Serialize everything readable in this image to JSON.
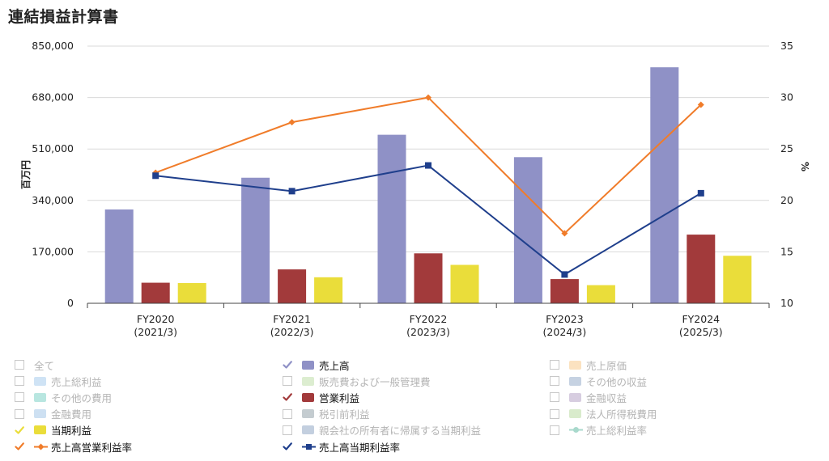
{
  "title": "連結損益計算書",
  "chart_data": {
    "type": "bar",
    "categories": [
      "FY2020\n(2021/3)",
      "FY2021\n(2022/3)",
      "FY2022\n(2023/3)",
      "FY2023\n(2024/3)",
      "FY2024\n(2025/3)"
    ],
    "category_lines": [
      [
        "FY2020",
        "(2021/3)"
      ],
      [
        "FY2021",
        "(2022/3)"
      ],
      [
        "FY2022",
        "(2023/3)"
      ],
      [
        "FY2023",
        "(2024/3)"
      ],
      [
        "FY2024",
        "(2025/3)"
      ]
    ],
    "ylabel": "百万円",
    "y2label": "%",
    "ylim": [
      0,
      850000
    ],
    "y2lim": [
      10,
      35
    ],
    "yticks": [
      0,
      170000,
      340000,
      510000,
      680000,
      850000
    ],
    "ytick_labels": [
      "0",
      "170,000",
      "340,000",
      "510,000",
      "680,000",
      "850,000"
    ],
    "y2ticks": [
      10,
      15,
      20,
      25,
      30,
      35
    ],
    "y2tick_labels": [
      "10",
      "15",
      "20",
      "25",
      "30",
      "35"
    ],
    "grid": true,
    "bar_series": [
      {
        "name": "売上高",
        "color": "#8f91c6",
        "values": [
          310000,
          415000,
          557000,
          483000,
          780000
        ]
      },
      {
        "name": "営業利益",
        "color": "#a23a3b",
        "values": [
          68000,
          112000,
          165000,
          80000,
          227000
        ]
      },
      {
        "name": "当期利益",
        "color": "#eadd3a",
        "values": [
          67000,
          86000,
          127000,
          60000,
          157000
        ]
      }
    ],
    "line_series": [
      {
        "name": "売上高営業利益率",
        "color": "#f07c2a",
        "marker": "diamond",
        "values": [
          22.7,
          27.6,
          30.0,
          16.8,
          29.3
        ]
      },
      {
        "name": "売上高当期利益率",
        "color": "#1f3f8c",
        "marker": "square",
        "values": [
          22.4,
          20.9,
          23.4,
          12.8,
          20.7
        ]
      }
    ]
  },
  "legend": {
    "items": [
      {
        "label": "全て",
        "checked": false,
        "check_color": "",
        "swatch": "none",
        "color": ""
      },
      {
        "label": "売上高",
        "checked": true,
        "check_color": "#8f91c6",
        "swatch": "bar",
        "color": "#8f91c6"
      },
      {
        "label": "売上原価",
        "checked": false,
        "check_color": "",
        "swatch": "bar",
        "color": "#fbe2c0"
      },
      {
        "label": "売上総利益",
        "checked": false,
        "check_color": "",
        "swatch": "bar",
        "color": "#cfe3f5"
      },
      {
        "label": "販売費および一般管理費",
        "checked": false,
        "check_color": "",
        "swatch": "bar",
        "color": "#dcedd0"
      },
      {
        "label": "その他の収益",
        "checked": false,
        "check_color": "",
        "swatch": "bar",
        "color": "#c6d2e2"
      },
      {
        "label": "その他の費用",
        "checked": false,
        "check_color": "",
        "swatch": "bar",
        "color": "#b8e6e0"
      },
      {
        "label": "営業利益",
        "checked": true,
        "check_color": "#a23a3b",
        "swatch": "bar",
        "color": "#a23a3b"
      },
      {
        "label": "金融収益",
        "checked": false,
        "check_color": "",
        "swatch": "bar",
        "color": "#d7cde0"
      },
      {
        "label": "金融費用",
        "checked": false,
        "check_color": "",
        "swatch": "bar",
        "color": "#cde0f2"
      },
      {
        "label": "税引前利益",
        "checked": false,
        "check_color": "",
        "swatch": "bar",
        "color": "#c4ccd0"
      },
      {
        "label": "法人所得税費用",
        "checked": false,
        "check_color": "",
        "swatch": "bar",
        "color": "#d9ebcc"
      },
      {
        "label": "当期利益",
        "checked": true,
        "check_color": "#eadd3a",
        "swatch": "bar",
        "color": "#eadd3a"
      },
      {
        "label": "親会社の所有者に帰属する当期利益",
        "checked": false,
        "check_color": "",
        "swatch": "bar",
        "color": "#c3cfdf"
      },
      {
        "label": "売上総利益率",
        "checked": false,
        "check_color": "",
        "swatch": "line-circle",
        "color": "#a8d9cc"
      },
      {
        "label": "売上高営業利益率",
        "checked": true,
        "check_color": "#f07c2a",
        "swatch": "line-diamond",
        "color": "#f07c2a"
      },
      {
        "label": "売上高当期利益率",
        "checked": true,
        "check_color": "#1f3f8c",
        "swatch": "line-square",
        "color": "#1f3f8c"
      }
    ]
  }
}
